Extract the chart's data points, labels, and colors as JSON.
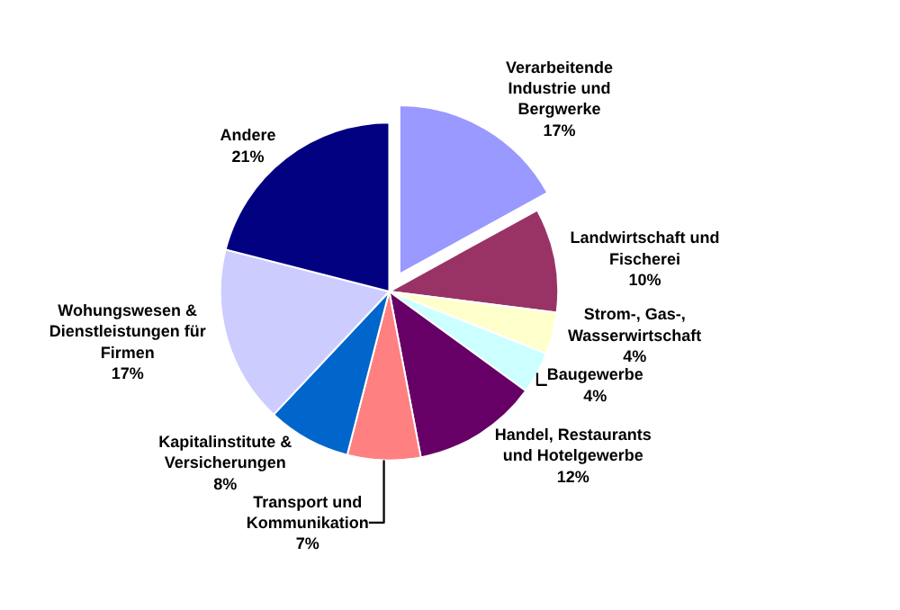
{
  "chart_data": {
    "type": "pie",
    "categories": [
      "Verarbeitende\nIndustrie und\nBergwerke",
      "Landwirtschaft und\nFischerei",
      "Strom-, Gas-,\nWasserwirtschaft",
      "Baugewerbe",
      "Handel, Restaurants\nund Hotelgewerbe",
      "Transport und\nKommunikation",
      "Kapitalinstitute &\nVersicherungen",
      "Wohungswesen &\nDienstleistungen für\nFirmen",
      "Andere"
    ],
    "values": [
      17,
      10,
      4,
      4,
      12,
      7,
      8,
      17,
      21
    ],
    "colors": [
      "#9999ff",
      "#993366",
      "#ffffcc",
      "#ccffff",
      "#660066",
      "#ff8080",
      "#0066cc",
      "#ccccff",
      "#000080"
    ],
    "value_labels": [
      "17%",
      "10%",
      "4%",
      "4%",
      "12%",
      "7%",
      "8%",
      "17%",
      "21%"
    ],
    "legend": false
  }
}
